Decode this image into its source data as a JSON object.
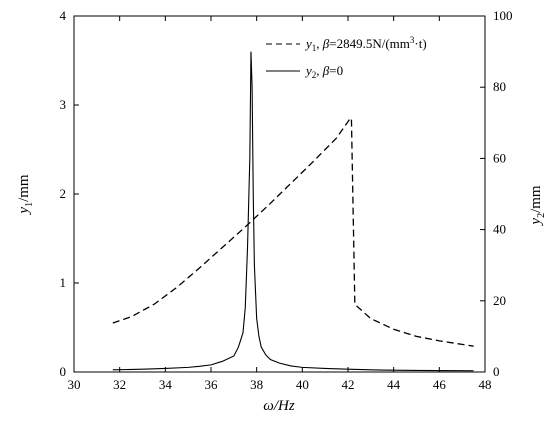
{
  "chart_data": {
    "type": "line",
    "xlabel": "ω/Hz",
    "ylabel_left": "y1/mm",
    "ylabel_right": "y2/mm",
    "xlim": [
      30,
      48
    ],
    "ylim_left": [
      0,
      4
    ],
    "ylim_right": [
      0,
      100
    ],
    "x_ticks": [
      "30",
      "32",
      "34",
      "36",
      "38",
      "40",
      "42",
      "44",
      "46",
      "48"
    ],
    "y_left_ticks": [
      "0",
      "1",
      "2",
      "3",
      "4"
    ],
    "y_right_ticks": [
      "0",
      "20",
      "40",
      "60",
      "80",
      "100"
    ],
    "grid": false,
    "legend_position": "top-right",
    "series": [
      {
        "name": "y1, β=2849.5N/(mm³·t)",
        "axis": "left",
        "style": "dashed",
        "color": "#000000",
        "x": [
          31.7,
          32.5,
          33.5,
          34.5,
          35.5,
          36.5,
          37.5,
          38.5,
          39.5,
          40.5,
          41.5,
          42.1,
          42.15,
          42.3,
          43.0,
          44.0,
          45.0,
          46.0,
          47.0,
          47.5
        ],
        "y": [
          0.55,
          0.62,
          0.76,
          0.95,
          1.17,
          1.4,
          1.63,
          1.87,
          2.12,
          2.37,
          2.63,
          2.85,
          2.85,
          0.76,
          0.6,
          0.48,
          0.4,
          0.35,
          0.31,
          0.29
        ]
      },
      {
        "name": "y2, β=0",
        "axis": "right",
        "style": "solid",
        "color": "#000000",
        "x": [
          31.7,
          33.0,
          34.0,
          35.0,
          35.5,
          36.0,
          36.5,
          37.0,
          37.2,
          37.4,
          37.5,
          37.6,
          37.7,
          37.75,
          37.8,
          37.85,
          37.9,
          38.0,
          38.1,
          38.2,
          38.4,
          38.6,
          39.0,
          39.5,
          40.0,
          41.0,
          42.0,
          43.0,
          44.0,
          45.0,
          46.0,
          47.5
        ],
        "y": [
          0.6,
          0.8,
          1.0,
          1.3,
          1.6,
          2.0,
          3.0,
          4.5,
          7.0,
          11.0,
          18.0,
          35.0,
          60.0,
          90.0,
          80.0,
          50.0,
          30.0,
          15.0,
          10.0,
          7.0,
          4.8,
          3.5,
          2.5,
          1.7,
          1.3,
          1.0,
          0.8,
          0.6,
          0.5,
          0.45,
          0.4,
          0.35
        ]
      }
    ]
  }
}
